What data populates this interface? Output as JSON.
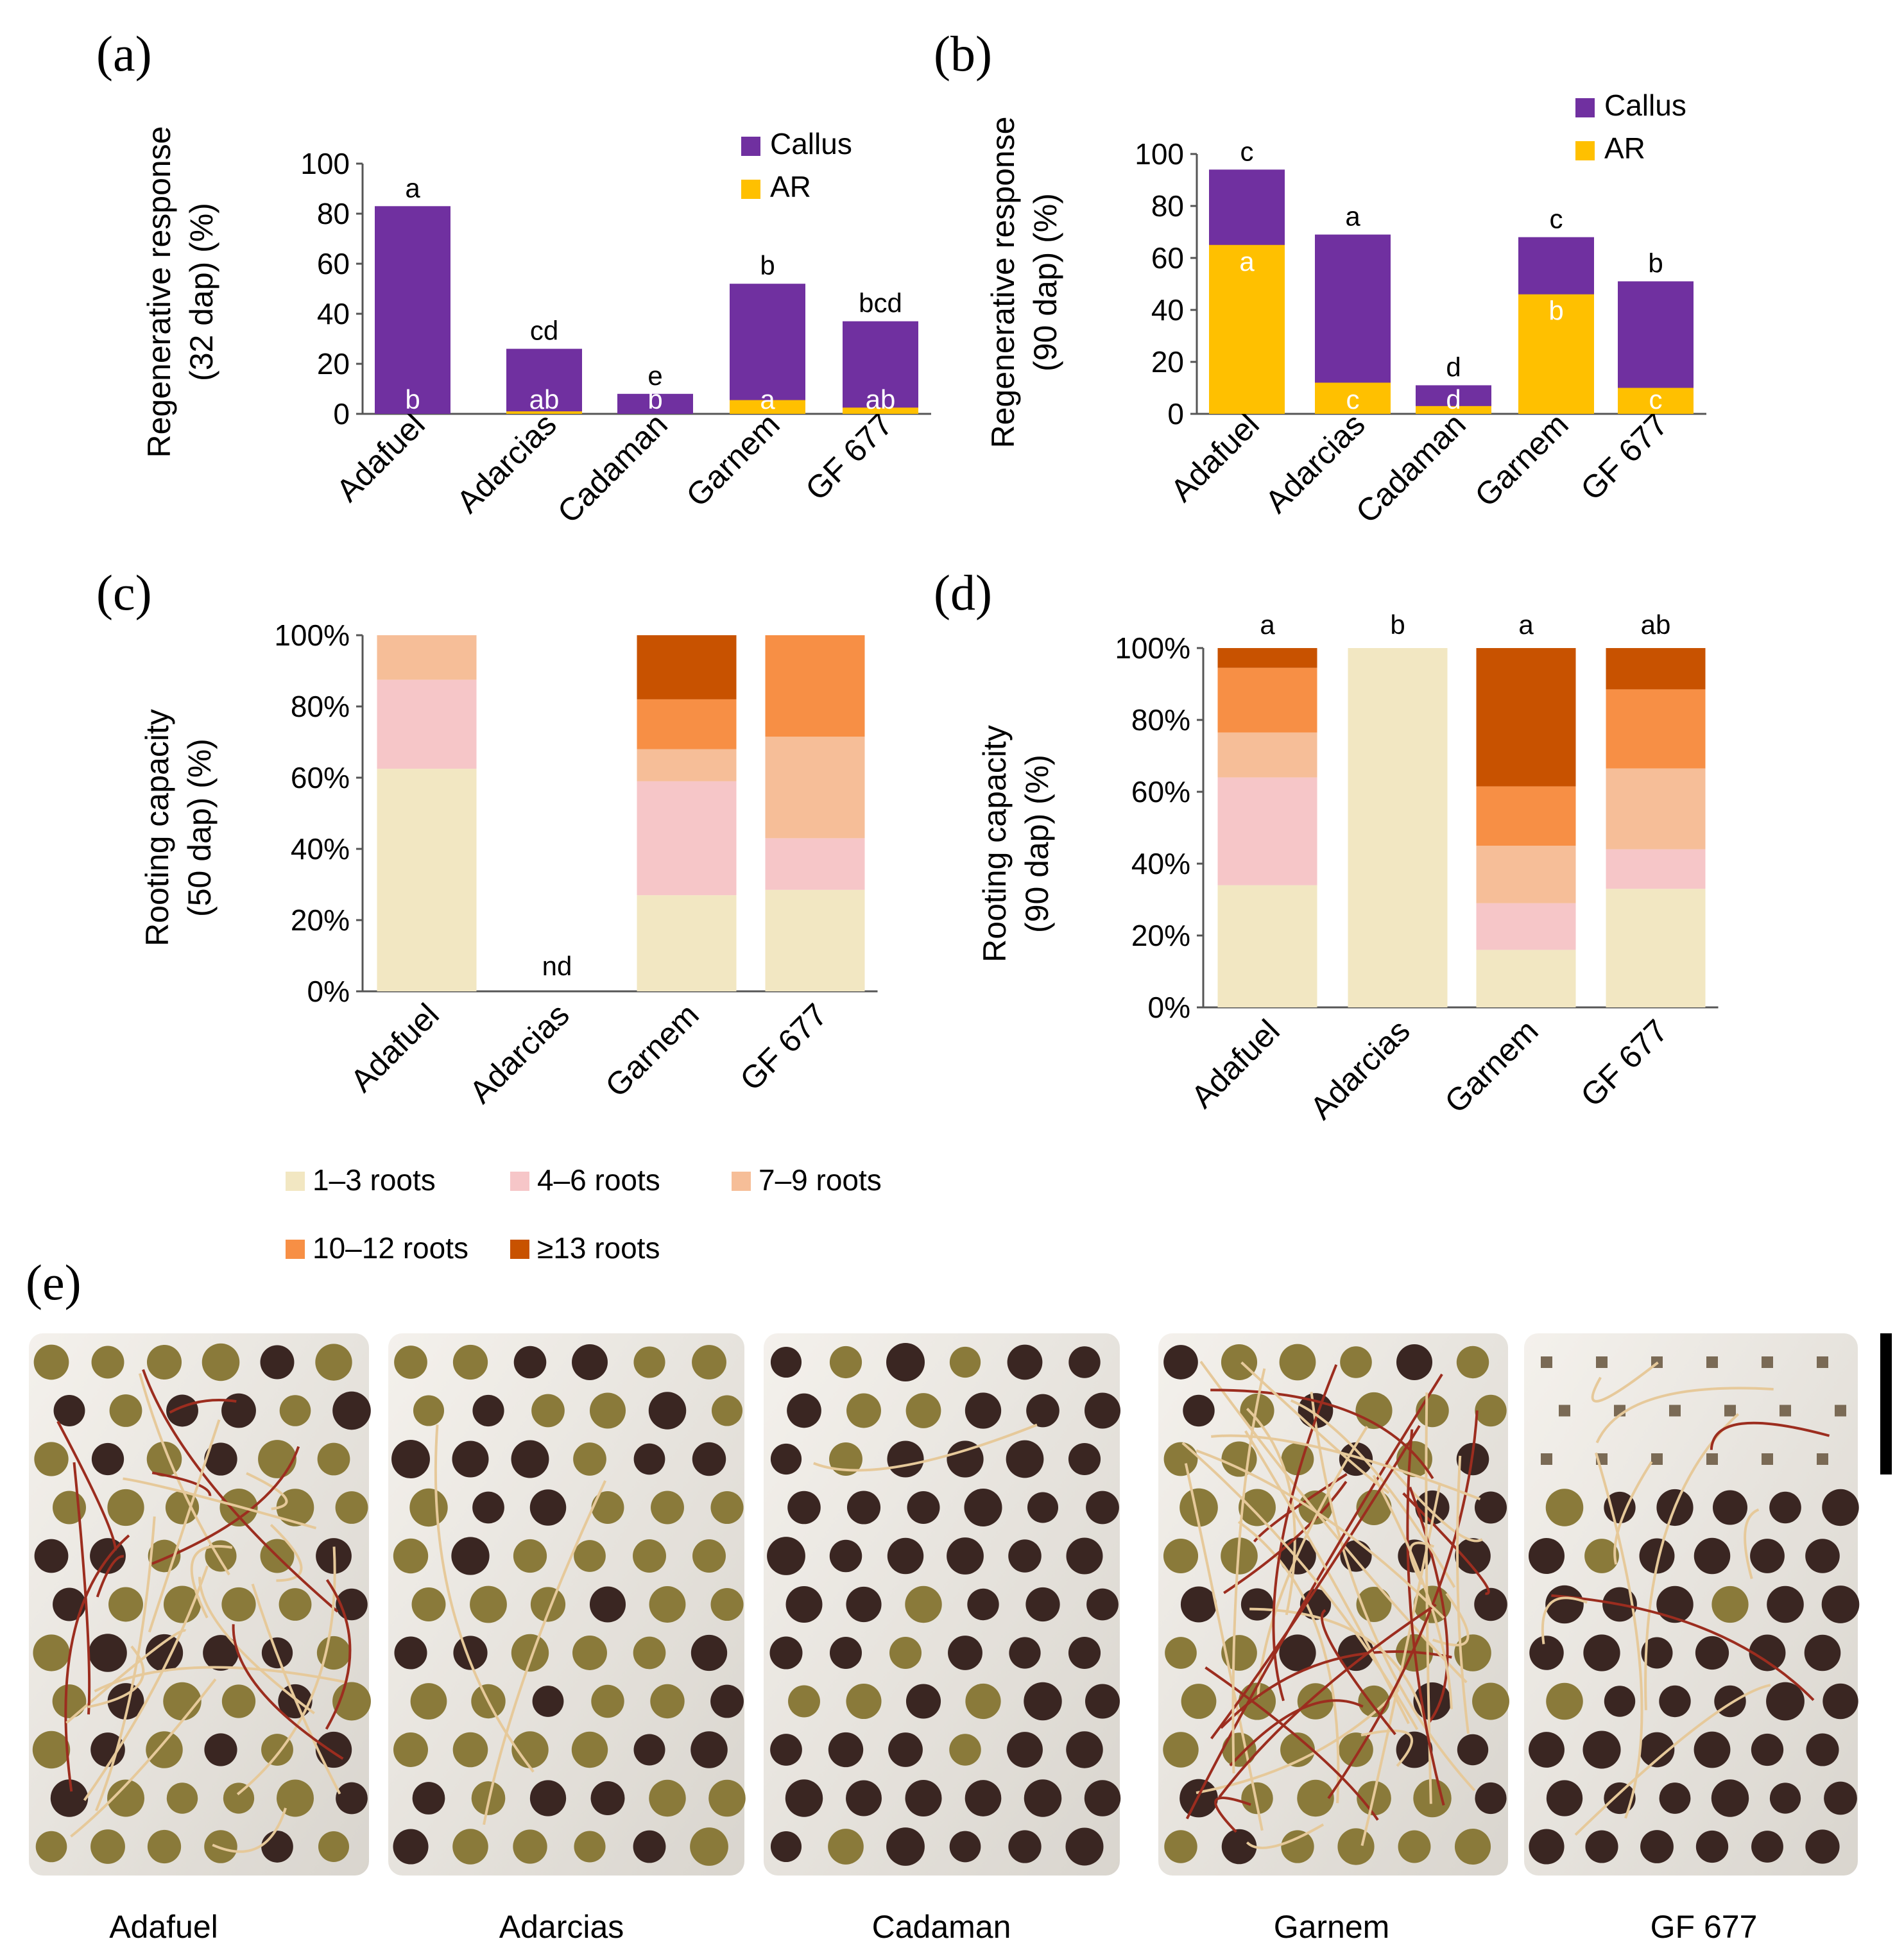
{
  "colors": {
    "callus": "#7030A0",
    "ar": "#FFC000",
    "roots_1_3": "#F2E7C2",
    "roots_4_6": "#F6C6C8",
    "roots_7_9": "#F6BE98",
    "roots_10_12": "#F78F45",
    "roots_13_plus": "#C85200",
    "tray": "#EFECE6"
  },
  "chart_data": [
    {
      "id": "a",
      "panel_label": "(a)",
      "type": "bar",
      "stacked": false,
      "overlapping": true,
      "categories": [
        "Adafuel",
        "Adarcias",
        "Cadaman",
        "Garnem",
        "GF 677"
      ],
      "series": [
        {
          "name": "Callus",
          "color_key": "callus",
          "values": [
            83,
            26,
            8,
            52,
            37
          ],
          "letters": [
            "a",
            "cd",
            "e",
            "b",
            "bcd"
          ]
        },
        {
          "name": "AR",
          "color_key": "ar",
          "values": [
            0,
            1,
            0,
            5.5,
            2.5
          ],
          "letters": [
            "b",
            "ab",
            "b",
            "a",
            "ab"
          ]
        }
      ],
      "ylabel": [
        "Regenerative response",
        "(32 dap) (%)"
      ],
      "ylim": [
        0,
        100
      ],
      "yticks": [
        "0",
        "20",
        "40",
        "60",
        "80",
        "100"
      ],
      "grid": false,
      "legend": "top-right"
    },
    {
      "id": "b",
      "panel_label": "(b)",
      "type": "bar",
      "stacked": false,
      "overlapping": true,
      "categories": [
        "Adafuel",
        "Adarcias",
        "Cadaman",
        "Garnem",
        "GF 677"
      ],
      "series": [
        {
          "name": "Callus",
          "color_key": "callus",
          "values": [
            94,
            69,
            11,
            68,
            51
          ],
          "letters": [
            "c",
            "a",
            "d",
            "c",
            "b"
          ]
        },
        {
          "name": "AR",
          "color_key": "ar",
          "values": [
            65,
            12,
            3,
            46,
            10
          ],
          "letters": [
            "a",
            "c",
            "d",
            "b",
            "c"
          ]
        }
      ],
      "ylabel": [
        "Regenerative response",
        "(90 dap) (%)"
      ],
      "ylim": [
        0,
        100
      ],
      "yticks": [
        "0",
        "20",
        "40",
        "60",
        "80",
        "100"
      ],
      "grid": false,
      "legend": "top-right"
    },
    {
      "id": "c",
      "panel_label": "(c)",
      "type": "bar",
      "stacked": true,
      "percent": true,
      "categories": [
        "Adafuel",
        "Adarcias",
        "Garnem",
        "GF 677"
      ],
      "series": [
        {
          "name": "1–3 roots",
          "color_key": "roots_1_3",
          "values": [
            62.5,
            0,
            27,
            28.5
          ]
        },
        {
          "name": "4–6 roots",
          "color_key": "roots_4_6",
          "values": [
            25,
            0,
            32,
            14.5
          ]
        },
        {
          "name": "7–9 roots",
          "color_key": "roots_7_9",
          "values": [
            12.5,
            0,
            9,
            28.5
          ]
        },
        {
          "name": "10–12 roots",
          "color_key": "roots_10_12",
          "values": [
            0,
            0,
            14,
            28.5
          ]
        },
        {
          "name": "≥13 roots",
          "color_key": "roots_13_plus",
          "values": [
            0,
            0,
            18,
            0
          ]
        }
      ],
      "annotations": [
        {
          "category": "Adarcias",
          "text": "nd"
        }
      ],
      "ylabel": [
        "Rooting capacity",
        "(50 dap) (%)"
      ],
      "ylim": [
        0,
        100
      ],
      "yticks": [
        "0%",
        "20%",
        "40%",
        "60%",
        "80%",
        "100%"
      ],
      "grid": false,
      "legend": "bottom"
    },
    {
      "id": "d",
      "panel_label": "(d)",
      "type": "bar",
      "stacked": true,
      "percent": true,
      "categories": [
        "Adafuel",
        "Adarcias",
        "Garnem",
        "GF 677"
      ],
      "series": [
        {
          "name": "1–3 roots",
          "color_key": "roots_1_3",
          "values": [
            34,
            100,
            16,
            33
          ]
        },
        {
          "name": "4–6 roots",
          "color_key": "roots_4_6",
          "values": [
            30,
            0,
            13,
            11
          ]
        },
        {
          "name": "7–9 roots",
          "color_key": "roots_7_9",
          "values": [
            12.5,
            0,
            16,
            22.5
          ]
        },
        {
          "name": "10–12 roots",
          "color_key": "roots_10_12",
          "values": [
            18,
            0,
            16.5,
            22
          ]
        },
        {
          "name": "≥13 roots",
          "color_key": "roots_13_plus",
          "values": [
            5.5,
            0,
            38.5,
            11.5
          ]
        }
      ],
      "letters": [
        "a",
        "b",
        "a",
        "ab"
      ],
      "ylabel": [
        "Rooting capacity",
        "(90 dap) (%)"
      ],
      "ylim": [
        0,
        100
      ],
      "yticks": [
        "0%",
        "20%",
        "40%",
        "60%",
        "80%",
        "100%"
      ],
      "grid": false
    }
  ],
  "legend_roots": [
    "1–3 roots",
    "4–6 roots",
    "7–9 roots",
    "10–12 roots",
    "≥13 roots"
  ],
  "photos": {
    "panel_label": "(e)",
    "captions": [
      "Adafuel",
      "Adarcias",
      "Cadaman",
      "Garnem",
      "GF 677"
    ]
  }
}
